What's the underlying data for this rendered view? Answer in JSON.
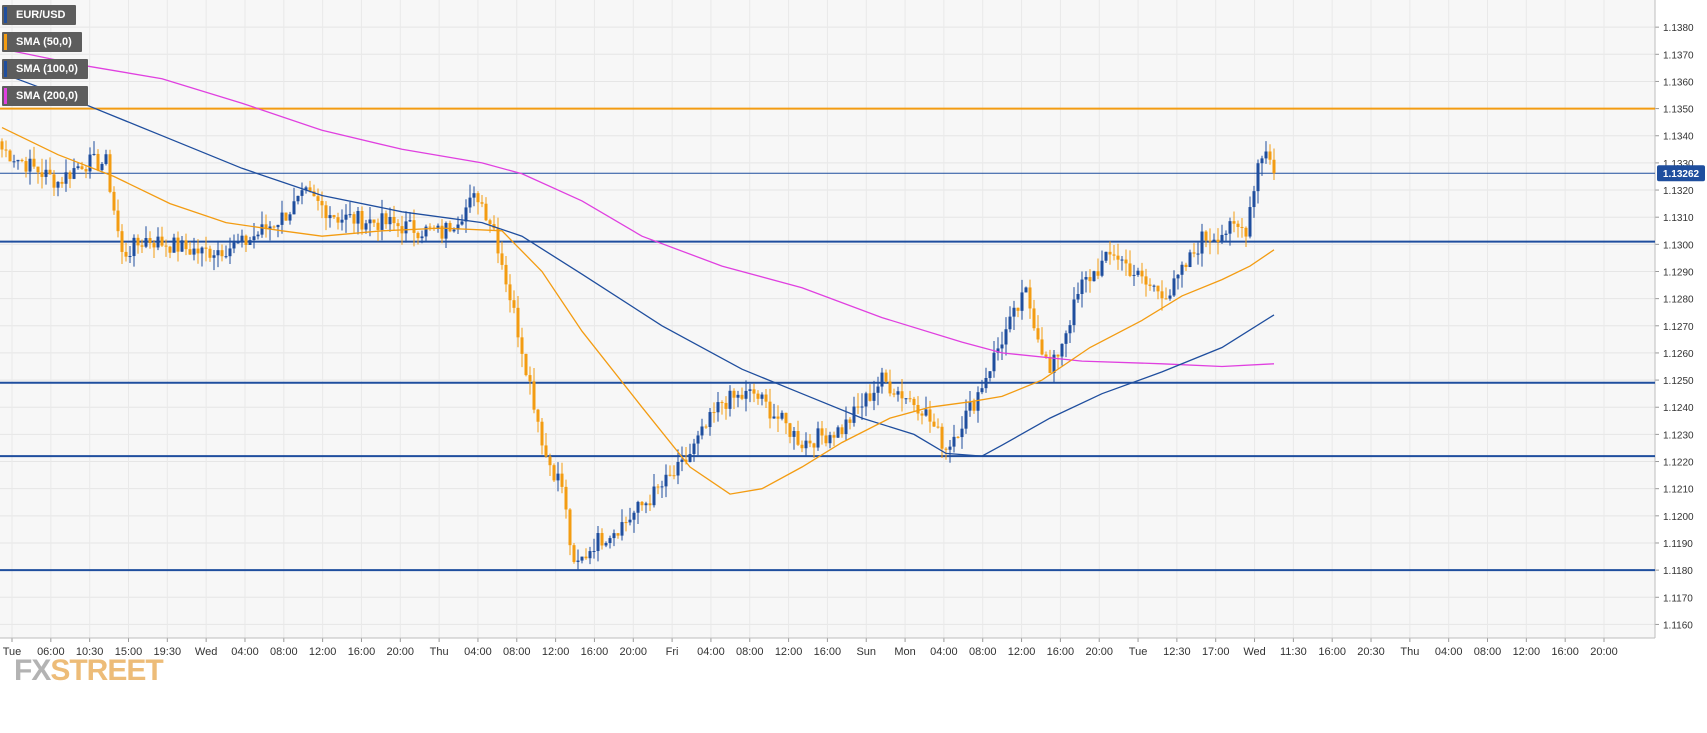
{
  "chart_data": {
    "type": "candlestick",
    "symbol": "EUR/USD",
    "ylim": [
      1.1155,
      1.139
    ],
    "y_ticks": [
      "1.1160",
      "1.1170",
      "1.1180",
      "1.1190",
      "1.1200",
      "1.1210",
      "1.1220",
      "1.1230",
      "1.1240",
      "1.1250",
      "1.1260",
      "1.1270",
      "1.1280",
      "1.1290",
      "1.1300",
      "1.1310",
      "1.1320",
      "1.1330",
      "1.1340",
      "1.1350",
      "1.1360",
      "1.1370",
      "1.1380"
    ],
    "x_ticks": [
      "Tue",
      "06:00",
      "10:30",
      "15:00",
      "19:30",
      "Wed",
      "04:00",
      "08:00",
      "12:00",
      "16:00",
      "20:00",
      "Thu",
      "04:00",
      "08:00",
      "12:00",
      "16:00",
      "20:00",
      "Fri",
      "04:00",
      "08:00",
      "12:00",
      "16:00",
      "Sun",
      "Mon",
      "04:00",
      "08:00",
      "12:00",
      "16:00",
      "20:00",
      "Tue",
      "12:30",
      "17:00",
      "Wed",
      "11:30",
      "16:00",
      "20:30",
      "Thu",
      "04:00",
      "08:00",
      "12:00",
      "16:00",
      "20:00"
    ],
    "last_price": 1.13262,
    "last_price_label": "1.13262",
    "horizontal_levels": [
      {
        "value": 1.135,
        "color": "#f39c12"
      },
      {
        "value": 1.1301,
        "color": "#1f4e9e"
      },
      {
        "value": 1.1249,
        "color": "#1f4e9e"
      },
      {
        "value": 1.1222,
        "color": "#1f4e9e"
      },
      {
        "value": 1.118,
        "color": "#1f4e9e"
      }
    ],
    "legend": [
      {
        "label": "EUR/USD",
        "color": "#1f4e9e"
      },
      {
        "label": "SMA (50,0)",
        "color": "#f39c12"
      },
      {
        "label": "SMA (100,0)",
        "color": "#1f4e9e"
      },
      {
        "label": "SMA (200,0)",
        "color": "#e040e0"
      }
    ],
    "candle_anchors": [
      {
        "i": 0,
        "close": 1.1335
      },
      {
        "i": 8,
        "close": 1.1328
      },
      {
        "i": 14,
        "close": 1.1323
      },
      {
        "i": 20,
        "close": 1.133
      },
      {
        "i": 26,
        "close": 1.133
      },
      {
        "i": 30,
        "close": 1.1296
      },
      {
        "i": 36,
        "close": 1.1302
      },
      {
        "i": 50,
        "close": 1.1297
      },
      {
        "i": 60,
        "close": 1.13
      },
      {
        "i": 70,
        "close": 1.131
      },
      {
        "i": 76,
        "close": 1.1318
      },
      {
        "i": 84,
        "close": 1.131
      },
      {
        "i": 95,
        "close": 1.1308
      },
      {
        "i": 110,
        "close": 1.1304
      },
      {
        "i": 119,
        "close": 1.1318
      },
      {
        "i": 123,
        "close": 1.1306
      },
      {
        "i": 130,
        "close": 1.1262
      },
      {
        "i": 136,
        "close": 1.1222
      },
      {
        "i": 140,
        "close": 1.1211
      },
      {
        "i": 143,
        "close": 1.118
      },
      {
        "i": 148,
        "close": 1.119
      },
      {
        "i": 156,
        "close": 1.1198
      },
      {
        "i": 170,
        "close": 1.1218
      },
      {
        "i": 180,
        "close": 1.1242
      },
      {
        "i": 188,
        "close": 1.1245
      },
      {
        "i": 200,
        "close": 1.1227
      },
      {
        "i": 210,
        "close": 1.1232
      },
      {
        "i": 220,
        "close": 1.125
      },
      {
        "i": 230,
        "close": 1.124
      },
      {
        "i": 236,
        "close": 1.1225
      },
      {
        "i": 243,
        "close": 1.1242
      },
      {
        "i": 250,
        "close": 1.1265
      },
      {
        "i": 256,
        "close": 1.1282
      },
      {
        "i": 262,
        "close": 1.1252
      },
      {
        "i": 270,
        "close": 1.1285
      },
      {
        "i": 278,
        "close": 1.1297
      },
      {
        "i": 286,
        "close": 1.1285
      },
      {
        "i": 292,
        "close": 1.1282
      },
      {
        "i": 300,
        "close": 1.1302
      },
      {
        "i": 306,
        "close": 1.1305
      },
      {
        "i": 311,
        "close": 1.1306
      },
      {
        "i": 314,
        "close": 1.133
      },
      {
        "i": 316,
        "close": 1.1336
      },
      {
        "i": 318,
        "close": 1.1326
      }
    ],
    "sma50": [
      [
        0,
        1.1343
      ],
      [
        14,
        1.1333
      ],
      [
        28,
        1.1325
      ],
      [
        42,
        1.1315
      ],
      [
        56,
        1.1308
      ],
      [
        70,
        1.1305
      ],
      [
        80,
        1.1303
      ],
      [
        95,
        1.1305
      ],
      [
        110,
        1.1306
      ],
      [
        125,
        1.1305
      ],
      [
        135,
        1.129
      ],
      [
        145,
        1.1268
      ],
      [
        160,
        1.124
      ],
      [
        172,
        1.1218
      ],
      [
        182,
        1.1208
      ],
      [
        190,
        1.121
      ],
      [
        200,
        1.1218
      ],
      [
        210,
        1.1227
      ],
      [
        222,
        1.1236
      ],
      [
        232,
        1.124
      ],
      [
        242,
        1.1242
      ],
      [
        250,
        1.1244
      ],
      [
        260,
        1.125
      ],
      [
        272,
        1.1262
      ],
      [
        285,
        1.1272
      ],
      [
        295,
        1.1281
      ],
      [
        305,
        1.1287
      ],
      [
        312,
        1.1292
      ],
      [
        318,
        1.1298
      ]
    ],
    "sma100": [
      [
        0,
        1.1363
      ],
      [
        20,
        1.1352
      ],
      [
        40,
        1.134
      ],
      [
        60,
        1.1328
      ],
      [
        80,
        1.1318
      ],
      [
        100,
        1.1312
      ],
      [
        120,
        1.1308
      ],
      [
        130,
        1.1303
      ],
      [
        145,
        1.1289
      ],
      [
        165,
        1.127
      ],
      [
        185,
        1.1254
      ],
      [
        200,
        1.1245
      ],
      [
        215,
        1.1236
      ],
      [
        228,
        1.123
      ],
      [
        236,
        1.1223
      ],
      [
        245,
        1.1222
      ],
      [
        250,
        1.1226
      ],
      [
        262,
        1.1236
      ],
      [
        275,
        1.1245
      ],
      [
        290,
        1.1253
      ],
      [
        305,
        1.1262
      ],
      [
        318,
        1.1274
      ]
    ],
    "sma200": [
      [
        0,
        1.1372
      ],
      [
        20,
        1.1366
      ],
      [
        40,
        1.1361
      ],
      [
        60,
        1.1352
      ],
      [
        80,
        1.1342
      ],
      [
        100,
        1.1335
      ],
      [
        120,
        1.133
      ],
      [
        130,
        1.1326
      ],
      [
        145,
        1.1316
      ],
      [
        160,
        1.1303
      ],
      [
        180,
        1.1292
      ],
      [
        200,
        1.1284
      ],
      [
        220,
        1.1273
      ],
      [
        240,
        1.1264
      ],
      [
        250,
        1.126
      ],
      [
        270,
        1.1257
      ],
      [
        290,
        1.1256
      ],
      [
        305,
        1.1255
      ],
      [
        318,
        1.1256
      ]
    ]
  },
  "watermark": {
    "fx": "FX",
    "street": "STREET"
  }
}
